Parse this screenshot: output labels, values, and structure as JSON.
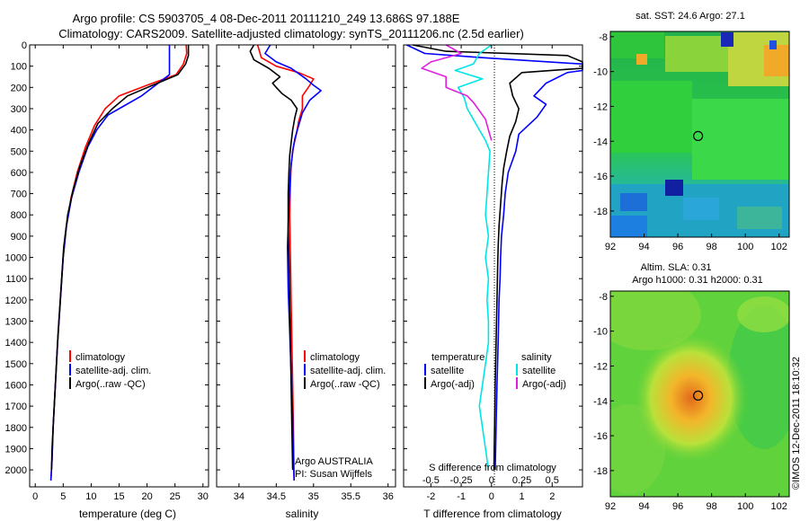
{
  "header": {
    "line1": "Argo profile: CS 5903705_4 08-Dec-2011 20111210_249 13.686S 97.188E",
    "line2": "Climatology: CARS2009. Satellite-adjusted climatology: synTS_20111206.nc (2.5d earlier)"
  },
  "colors": {
    "climatology": "#ff0000",
    "satellite": "#0000ff",
    "argo": "#000000",
    "cyan": "#00e5e5",
    "magenta": "#e020e0"
  },
  "depth_axis": {
    "ticks": [
      0,
      100,
      200,
      300,
      400,
      500,
      600,
      700,
      800,
      900,
      1000,
      1100,
      1200,
      1300,
      1400,
      1500,
      1600,
      1700,
      1800,
      1900,
      2000
    ],
    "range": [
      0,
      2080
    ]
  },
  "chart_data": [
    {
      "id": "temperature",
      "type": "line",
      "xlabel": "temperature (deg C)",
      "xlim": [
        -1,
        31
      ],
      "xticks": [
        0,
        5,
        10,
        15,
        20,
        25,
        30
      ],
      "ylim": [
        0,
        2080
      ],
      "legend": [
        "climatology",
        "satellite-adj. clim.",
        "Argo(..raw -QC)"
      ],
      "series": [
        {
          "name": "climatology",
          "color": "#ff0000",
          "points": [
            [
              27.0,
              0
            ],
            [
              27.1,
              40
            ],
            [
              26.5,
              90
            ],
            [
              25.2,
              140
            ],
            [
              20,
              190
            ],
            [
              15,
              240
            ],
            [
              12.5,
              300
            ],
            [
              10.6,
              380
            ],
            [
              9,
              480
            ],
            [
              7.5,
              600
            ],
            [
              6.4,
              720
            ],
            [
              5.6,
              850
            ],
            [
              5.0,
              1000
            ],
            [
              4.5,
              1200
            ],
            [
              4.0,
              1400
            ],
            [
              3.6,
              1600
            ],
            [
              3.2,
              1800
            ],
            [
              3.0,
              1950
            ],
            [
              2.8,
              2050
            ]
          ]
        },
        {
          "name": "satellite-adj. clim.",
          "color": "#0000ff",
          "points": [
            [
              24,
              0
            ],
            [
              24,
              50
            ],
            [
              24,
              100
            ],
            [
              24,
              140
            ],
            [
              23,
              160
            ],
            [
              19,
              240
            ],
            [
              15,
              300
            ],
            [
              13,
              330
            ],
            [
              11,
              400
            ],
            [
              9.4,
              480
            ],
            [
              7.8,
              600
            ],
            [
              6.5,
              720
            ],
            [
              5.6,
              850
            ],
            [
              5.0,
              1000
            ],
            [
              4.5,
              1200
            ],
            [
              4.0,
              1400
            ],
            [
              3.6,
              1600
            ],
            [
              3.2,
              1800
            ],
            [
              3.0,
              1950
            ],
            [
              2.8,
              2050
            ]
          ]
        },
        {
          "name": "Argo(..raw -QC)",
          "color": "#000000",
          "points": [
            [
              27.4,
              0
            ],
            [
              27.4,
              50
            ],
            [
              26.9,
              90
            ],
            [
              25.5,
              140
            ],
            [
              21,
              190
            ],
            [
              16.5,
              240
            ],
            [
              13.8,
              300
            ],
            [
              11.2,
              370
            ],
            [
              9.6,
              460
            ],
            [
              8,
              570
            ],
            [
              6.8,
              680
            ],
            [
              5.8,
              800
            ],
            [
              5.1,
              950
            ],
            [
              4.6,
              1150
            ],
            [
              4.1,
              1350
            ],
            [
              3.7,
              1550
            ],
            [
              3.3,
              1750
            ],
            [
              3.0,
              1900
            ],
            [
              2.9,
              2000
            ]
          ]
        }
      ]
    },
    {
      "id": "salinity",
      "type": "line",
      "xlabel": "salinity",
      "xlim": [
        33.7,
        36.1
      ],
      "xticks": [
        34,
        34.5,
        35,
        35.5,
        36
      ],
      "ylim": [
        0,
        2080
      ],
      "legend": [
        "climatology",
        "satellite-adj. clim.",
        "Argo(..raw -QC)"
      ],
      "series": [
        {
          "name": "climatology",
          "color": "#ff0000",
          "points": [
            [
              34.25,
              0
            ],
            [
              34.3,
              60
            ],
            [
              34.5,
              100
            ],
            [
              34.8,
              130
            ],
            [
              35.0,
              160
            ],
            [
              34.95,
              190
            ],
            [
              34.85,
              240
            ],
            [
              34.85,
              300
            ],
            [
              34.8,
              360
            ],
            [
              34.77,
              420
            ],
            [
              34.73,
              480
            ],
            [
              34.7,
              560
            ],
            [
              34.69,
              650
            ],
            [
              34.68,
              800
            ],
            [
              34.69,
              1000
            ],
            [
              34.7,
              1200
            ],
            [
              34.71,
              1400
            ],
            [
              34.72,
              1600
            ],
            [
              34.73,
              1800
            ],
            [
              34.74,
              2050
            ]
          ]
        },
        {
          "name": "satellite-adj. clim.",
          "color": "#0000ff",
          "points": [
            [
              34.42,
              0
            ],
            [
              34.35,
              40
            ],
            [
              34.5,
              80
            ],
            [
              34.7,
              110
            ],
            [
              34.9,
              160
            ],
            [
              35.0,
              190
            ],
            [
              35.1,
              215
            ],
            [
              34.95,
              260
            ],
            [
              34.85,
              320
            ],
            [
              34.8,
              380
            ],
            [
              34.75,
              440
            ],
            [
              34.72,
              500
            ],
            [
              34.69,
              600
            ],
            [
              34.67,
              750
            ],
            [
              34.65,
              950
            ],
            [
              34.66,
              1150
            ],
            [
              34.68,
              1350
            ],
            [
              34.7,
              1550
            ],
            [
              34.72,
              1750
            ],
            [
              34.73,
              1950
            ],
            [
              34.74,
              2050
            ]
          ]
        },
        {
          "name": "Argo(..raw -QC)",
          "color": "#000000",
          "points": [
            [
              34.2,
              0
            ],
            [
              34.15,
              30
            ],
            [
              34.2,
              70
            ],
            [
              34.4,
              110
            ],
            [
              34.55,
              150
            ],
            [
              34.45,
              180
            ],
            [
              34.5,
              200
            ],
            [
              34.58,
              230
            ],
            [
              34.7,
              260
            ],
            [
              34.78,
              300
            ],
            [
              34.75,
              340
            ],
            [
              34.72,
              400
            ],
            [
              34.7,
              460
            ],
            [
              34.68,
              520
            ],
            [
              34.67,
              600
            ],
            [
              34.66,
              700
            ],
            [
              34.66,
              850
            ],
            [
              34.67,
              1000
            ],
            [
              34.68,
              1200
            ],
            [
              34.69,
              1400
            ],
            [
              34.7,
              1600
            ],
            [
              34.71,
              1800
            ],
            [
              34.72,
              2000
            ]
          ]
        }
      ]
    },
    {
      "id": "differences",
      "type": "line",
      "xlabel": "T difference from climatology",
      "top_label": "S difference from climatology",
      "xlim": [
        -2.9,
        3.0
      ],
      "xticks": [
        -2,
        -1,
        0,
        1,
        2
      ],
      "s_ticks_labels": [
        "-0.5",
        "-0.25",
        "0",
        "0.25",
        "0.5"
      ],
      "s_ticks_at_T": [
        -2,
        -1,
        0,
        1,
        2
      ],
      "legend_headers": [
        "temperature",
        "salinity"
      ],
      "legend": [
        "satellite",
        "Argo(-adj)",
        "satellite",
        "Argo(-adj)"
      ],
      "series": [
        {
          "name": "temperature satellite",
          "color": "#0000ff",
          "points": [
            [
              -2.8,
              0
            ],
            [
              -2.2,
              40
            ],
            [
              -0.3,
              60
            ],
            [
              3.0,
              90
            ],
            [
              3.0,
              120
            ],
            [
              2.5,
              130
            ],
            [
              1.8,
              180
            ],
            [
              1.4,
              240
            ],
            [
              1.8,
              280
            ],
            [
              1.5,
              340
            ],
            [
              0.9,
              420
            ],
            [
              0.8,
              500
            ],
            [
              0.55,
              600
            ],
            [
              0.45,
              700
            ],
            [
              0.4,
              800
            ],
            [
              0.33,
              900
            ],
            [
              0.3,
              1000
            ],
            [
              0.28,
              1100
            ],
            [
              0.25,
              1200
            ],
            [
              0.22,
              1400
            ],
            [
              0.18,
              1600
            ],
            [
              0.15,
              1800
            ],
            [
              0.12,
              2000
            ]
          ]
        },
        {
          "name": "temperature Argo(-adj)",
          "color": "#000000",
          "points": [
            [
              -2.6,
              0
            ],
            [
              -1.5,
              30
            ],
            [
              2.5,
              50
            ],
            [
              3.0,
              80
            ],
            [
              3.0,
              110
            ],
            [
              1.0,
              130
            ],
            [
              0.6,
              180
            ],
            [
              0.7,
              240
            ],
            [
              0.9,
              300
            ],
            [
              0.8,
              360
            ],
            [
              0.6,
              430
            ],
            [
              0.5,
              500
            ],
            [
              0.4,
              580
            ],
            [
              0.35,
              650
            ],
            [
              0.3,
              750
            ],
            [
              0.25,
              850
            ],
            [
              0.22,
              950
            ],
            [
              0.2,
              1050
            ],
            [
              0.18,
              1200
            ],
            [
              0.15,
              1400
            ],
            [
              0.12,
              1600
            ],
            [
              0.1,
              1800
            ],
            [
              0.08,
              2000
            ]
          ]
        },
        {
          "name": "salinity satellite",
          "color": "#00e5e5",
          "points": [
            [
              0.0,
              0
            ],
            [
              -0.4,
              40
            ],
            [
              -0.6,
              90
            ],
            [
              -1.2,
              120
            ],
            [
              -0.3,
              160
            ],
            [
              -1.1,
              200
            ],
            [
              -0.9,
              250
            ],
            [
              -0.8,
              300
            ],
            [
              -0.4,
              400
            ],
            [
              -0.2,
              450
            ],
            [
              -0.05,
              500
            ],
            [
              -0.1,
              600
            ],
            [
              -0.15,
              700
            ],
            [
              -0.2,
              800
            ],
            [
              -0.1,
              900
            ],
            [
              -0.2,
              1000
            ],
            [
              -0.1,
              1100
            ],
            [
              -0.15,
              1200
            ],
            [
              -0.1,
              1300
            ],
            [
              -0.1,
              1400
            ],
            [
              -0.2,
              1500
            ],
            [
              -0.3,
              1600
            ],
            [
              -0.4,
              1700
            ],
            [
              -0.3,
              1800
            ],
            [
              -0.2,
              1900
            ],
            [
              -0.1,
              2000
            ]
          ]
        },
        {
          "name": "salinity Argo(-adj)",
          "color": "#e020e0",
          "points": [
            [
              -1.5,
              0
            ],
            [
              -1.0,
              40
            ],
            [
              -2.0,
              80
            ],
            [
              -2.3,
              110
            ],
            [
              -1.5,
              150
            ],
            [
              -1.5,
              200
            ],
            [
              -0.8,
              240
            ],
            [
              -0.6,
              270
            ],
            [
              -0.2,
              350
            ],
            [
              -0.1,
              400
            ],
            [
              0.0,
              450
            ]
          ]
        }
      ]
    }
  ],
  "maps": [
    {
      "title": "sat. SST: 24.6 Argo: 27.1",
      "xticks": [
        "92",
        "94",
        "96",
        "98",
        "100",
        "102"
      ],
      "x_values": [
        92,
        94,
        96,
        98,
        100,
        102
      ],
      "yticks": [
        "-8",
        "-10",
        "-12",
        "-14",
        "-16",
        "-18"
      ],
      "y_values": [
        -8,
        -10,
        -12,
        -14,
        -16,
        -18
      ],
      "xlim": [
        92,
        102.6
      ],
      "ylim": [
        -19.5,
        -7.7
      ],
      "float": {
        "lon": 97.2,
        "lat": -13.7
      }
    },
    {
      "title_line1": "Altim. SLA: 0.31",
      "title_line2": "Argo h1000: 0.31 h2000: 0.31",
      "xticks": [
        "92",
        "94",
        "96",
        "98",
        "100",
        "102"
      ],
      "x_values": [
        92,
        94,
        96,
        98,
        100,
        102
      ],
      "yticks": [
        "-8",
        "-10",
        "-12",
        "-14",
        "-16",
        "-18"
      ],
      "y_values": [
        -8,
        -10,
        -12,
        -14,
        -16,
        -18
      ],
      "xlim": [
        92,
        102.6
      ],
      "ylim": [
        -19.5,
        -7.7
      ],
      "float": {
        "lon": 97.2,
        "lat": -13.7
      }
    }
  ],
  "annotations": {
    "argo_line1": "Argo AUSTRALIA",
    "argo_line2": "PI: Susan Wijffels",
    "imos": "©IMOS 12-Dec-2011 18:10:32"
  }
}
